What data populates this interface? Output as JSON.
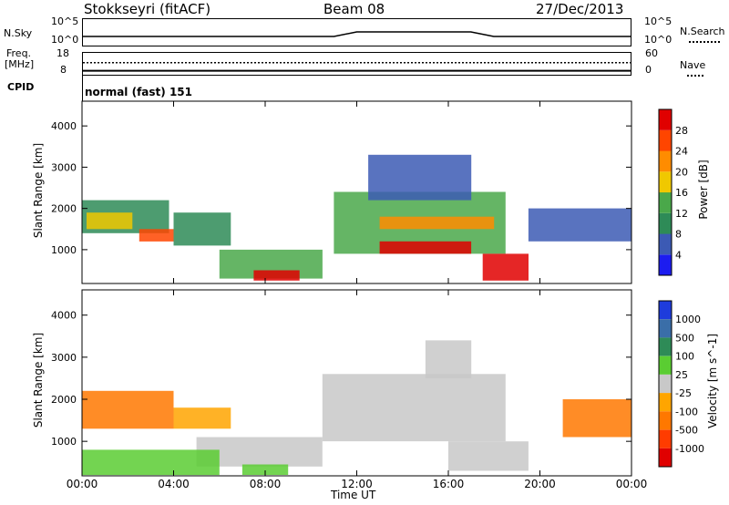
{
  "header": {
    "station": "Stokkseyri (fitACF)",
    "beam": "Beam 08",
    "date": "27/Dec/2013"
  },
  "top_panels": {
    "nsky_label": "N.Sky",
    "nsky_ticks": [
      "10^5",
      "10^0"
    ],
    "nsearch_label": "N.Search",
    "nsearch_ticks": [
      "10^5",
      "10^0"
    ],
    "freq_label": "Freq.",
    "freq_unit": "[MHz]",
    "freq_ticks": [
      "18",
      "8"
    ],
    "nave_label": "Nave",
    "nave_ticks": [
      "60",
      "0"
    ],
    "cpid_label": "CPID",
    "cpid_value": "normal (fast) 151"
  },
  "xaxis": {
    "label": "Time UT",
    "ticks": [
      "00:00",
      "04:00",
      "08:00",
      "12:00",
      "16:00",
      "20:00",
      "00:00"
    ]
  },
  "colors": {
    "power": [
      "#1c1cf0",
      "#3c5ab4",
      "#2e8b57",
      "#4aa84a",
      "#f0c800",
      "#ff8c00",
      "#ff4500",
      "#e00000"
    ],
    "velocity": [
      "#1e3cdc",
      "#3a6ea8",
      "#2e8b57",
      "#5acd32",
      "#c8c8c8",
      "#ffa500",
      "#ff7800",
      "#ff3c00",
      "#e00000"
    ]
  },
  "chart_data": [
    {
      "type": "line",
      "title": "N.Sky / N.Search",
      "x": [
        0,
        1,
        2,
        3,
        4,
        5,
        6,
        7,
        8,
        9,
        10,
        11,
        12,
        13,
        14,
        15,
        16,
        17,
        18,
        19,
        20,
        21,
        22,
        23,
        24
      ],
      "ylim": [
        0,
        5
      ],
      "series": [
        {
          "name": "N.Sky",
          "values": [
            2,
            2,
            2,
            2,
            2,
            2,
            2,
            2,
            2,
            2,
            2,
            2,
            3,
            3,
            3,
            3,
            3,
            3,
            2,
            2,
            2,
            2,
            2,
            2,
            2
          ]
        }
      ]
    },
    {
      "type": "line",
      "title": "Freq. / Nave",
      "x": [
        0,
        24
      ],
      "ylim": [
        8,
        18
      ],
      "series": [
        {
          "name": "Freq.",
          "values": [
            10,
            10
          ]
        },
        {
          "name": "Nave",
          "values": [
            14,
            14
          ]
        }
      ]
    },
    {
      "type": "heatmap",
      "title": "Power",
      "xlabel": "Time UT",
      "ylabel": "Slant Range [km]",
      "xlim": [
        0,
        24
      ],
      "ylim": [
        180,
        4600
      ],
      "yticks": [
        1000,
        2000,
        3000,
        4000
      ],
      "colorbar": {
        "label": "Power [dB]",
        "ticks": [
          "28",
          "24",
          "20",
          "16",
          "12",
          "8",
          "4"
        ]
      },
      "regions": [
        {
          "t0": 0.0,
          "t1": 3.8,
          "r0": 1400,
          "r1": 2200,
          "level": 2
        },
        {
          "t0": 0.2,
          "t1": 2.2,
          "r0": 1500,
          "r1": 1900,
          "level": 4
        },
        {
          "t0": 2.5,
          "t1": 4.0,
          "r0": 1200,
          "r1": 1500,
          "level": 6
        },
        {
          "t0": 4.0,
          "t1": 6.5,
          "r0": 1100,
          "r1": 1900,
          "level": 2
        },
        {
          "t0": 6.0,
          "t1": 10.5,
          "r0": 300,
          "r1": 1000,
          "level": 3
        },
        {
          "t0": 7.5,
          "t1": 9.5,
          "r0": 250,
          "r1": 500,
          "level": 7
        },
        {
          "t0": 11.0,
          "t1": 18.5,
          "r0": 900,
          "r1": 2400,
          "level": 3
        },
        {
          "t0": 13.0,
          "t1": 18.0,
          "r0": 1500,
          "r1": 1800,
          "level": 5
        },
        {
          "t0": 13.0,
          "t1": 17.0,
          "r0": 900,
          "r1": 1200,
          "level": 7
        },
        {
          "t0": 17.5,
          "t1": 19.5,
          "r0": 250,
          "r1": 900,
          "level": 7
        },
        {
          "t0": 19.5,
          "t1": 24.0,
          "r0": 1200,
          "r1": 2000,
          "level": 1
        },
        {
          "t0": 12.5,
          "t1": 17.0,
          "r0": 2200,
          "r1": 3300,
          "level": 1
        }
      ]
    },
    {
      "type": "heatmap",
      "title": "Velocity",
      "xlabel": "Time UT",
      "ylabel": "Slant Range [km]",
      "xlim": [
        0,
        24
      ],
      "ylim": [
        180,
        4600
      ],
      "yticks": [
        1000,
        2000,
        3000,
        4000
      ],
      "colorbar": {
        "label": "Velocity [m s^-1]",
        "ticks": [
          "1000",
          "500",
          "100",
          "25",
          "-25",
          "-100",
          "-500",
          "-1000"
        ]
      },
      "regions": [
        {
          "t0": 0.0,
          "t1": 4.0,
          "r0": 1300,
          "r1": 2200,
          "level": 6
        },
        {
          "t0": 4.0,
          "t1": 6.5,
          "r0": 1300,
          "r1": 1800,
          "level": 5
        },
        {
          "t0": 5.0,
          "t1": 10.5,
          "r0": 400,
          "r1": 1100,
          "level": 4
        },
        {
          "t0": 7.0,
          "t1": 9.0,
          "r0": 200,
          "r1": 450,
          "level": 3
        },
        {
          "t0": 10.5,
          "t1": 18.5,
          "r0": 1000,
          "r1": 2600,
          "level": 4
        },
        {
          "t0": 15.0,
          "t1": 17.0,
          "r0": 2500,
          "r1": 3400,
          "level": 4
        },
        {
          "t0": 16.0,
          "t1": 19.5,
          "r0": 300,
          "r1": 1000,
          "level": 4
        },
        {
          "t0": 21.0,
          "t1": 24.0,
          "r0": 1100,
          "r1": 2000,
          "level": 6
        },
        {
          "t0": 0.0,
          "t1": 6.0,
          "r0": 200,
          "r1": 800,
          "level": 3
        }
      ]
    }
  ]
}
